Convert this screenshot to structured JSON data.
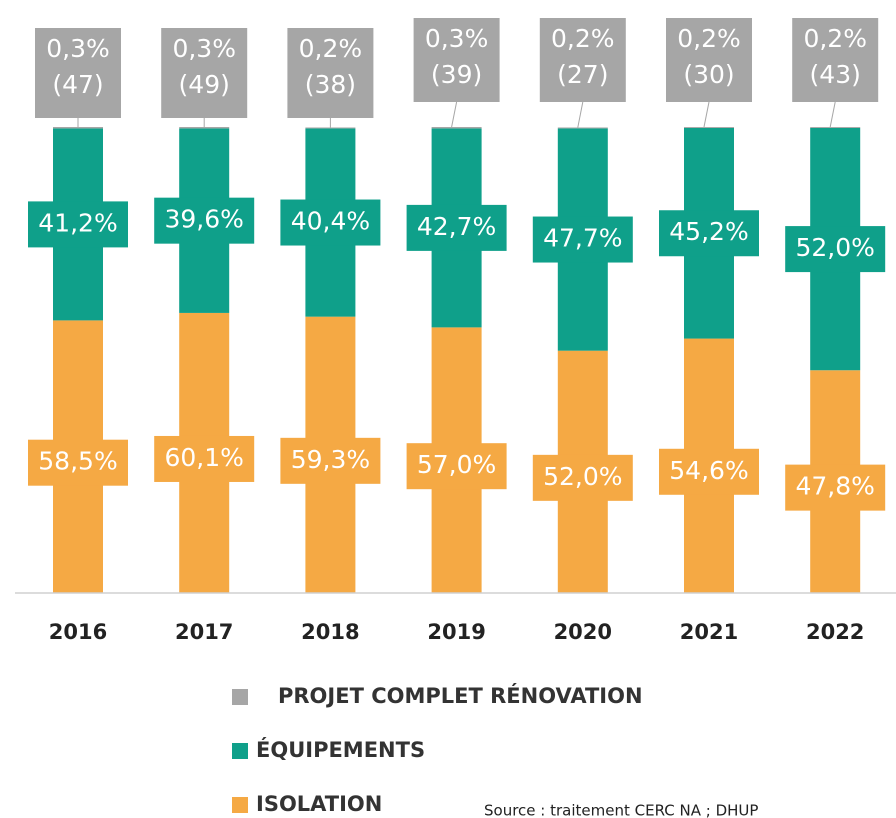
{
  "chart_data": {
    "type": "bar",
    "stacked": true,
    "categories": [
      "2016",
      "2017",
      "2018",
      "2019",
      "2020",
      "2021",
      "2022"
    ],
    "series": [
      {
        "name": "ISOLATION",
        "color": "#f5a944",
        "values": [
          58.5,
          60.1,
          59.3,
          57.0,
          52.0,
          54.6,
          47.8
        ],
        "value_labels": [
          "58,5%",
          "60,1%",
          "59,3%",
          "57,0%",
          "52,0%",
          "54,6%",
          "47,8%"
        ]
      },
      {
        "name": "ÉQUIPEMENTS",
        "color": "#0fa08a",
        "values": [
          41.2,
          39.6,
          40.4,
          42.7,
          47.7,
          45.2,
          52.0
        ],
        "value_labels": [
          "41,2%",
          "39,6%",
          "40,4%",
          "42,7%",
          "47,7%",
          "45,2%",
          "52,0%"
        ]
      },
      {
        "name": "PROJET COMPLET RÉNOVATION",
        "color": "#a6a6a6",
        "values": [
          0.3,
          0.3,
          0.2,
          0.3,
          0.2,
          0.2,
          0.2
        ],
        "value_labels": [
          "0,3%",
          "0,3%",
          "0,2%",
          "0,3%",
          "0,2%",
          "0,2%",
          "0,2%"
        ],
        "counts": [
          47,
          49,
          38,
          39,
          27,
          30,
          43
        ],
        "count_labels": [
          "(47)",
          "(49)",
          "(38)",
          "(39)",
          "(27)",
          "(30)",
          "(43)"
        ]
      }
    ],
    "ylim": [
      0,
      100
    ],
    "source": "Source : traitement CERC NA ; DHUP"
  }
}
